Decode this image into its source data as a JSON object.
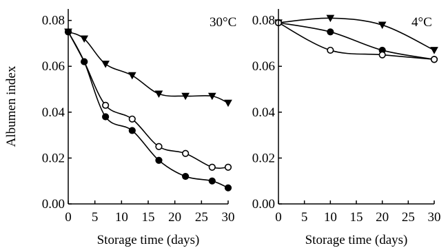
{
  "chart_data": [
    {
      "type": "line",
      "panel_label": "30°C",
      "xlabel": "Storage time (days)",
      "ylabel": "Albumen index",
      "xlim": [
        0,
        30
      ],
      "ylim": [
        0,
        0.085
      ],
      "x_ticks": [
        0,
        5,
        10,
        15,
        20,
        25,
        30
      ],
      "x_tick_labels": [
        "0",
        "5",
        "10",
        "15",
        "20",
        "25",
        "30"
      ],
      "y_ticks": [
        0,
        0.02,
        0.04,
        0.06,
        0.08
      ],
      "y_tick_labels": [
        "0.00",
        "0.02",
        "0.04",
        "0.06",
        "0.08"
      ],
      "grid": false,
      "series": [
        {
          "marker": "triangle-down",
          "x": [
            0,
            3,
            7,
            12,
            17,
            22,
            27,
            30
          ],
          "y": [
            0.075,
            0.072,
            0.061,
            0.056,
            0.048,
            0.047,
            0.047,
            0.044
          ]
        },
        {
          "marker": "circle-open",
          "x": [
            0,
            3,
            7,
            12,
            17,
            22,
            27,
            30
          ],
          "y": [
            0.075,
            0.062,
            0.043,
            0.037,
            0.025,
            0.022,
            0.016,
            0.016
          ]
        },
        {
          "marker": "circle-filled",
          "x": [
            0,
            3,
            7,
            12,
            17,
            22,
            27,
            30
          ],
          "y": [
            0.075,
            0.062,
            0.038,
            0.032,
            0.019,
            0.012,
            0.01,
            0.007
          ]
        }
      ]
    },
    {
      "type": "line",
      "panel_label": "4°C",
      "xlabel": "Storage time (days)",
      "ylabel": "",
      "xlim": [
        0,
        30
      ],
      "ylim": [
        0,
        0.085
      ],
      "x_ticks": [
        0,
        5,
        10,
        15,
        20,
        25,
        30
      ],
      "x_tick_labels": [
        "0",
        "5",
        "10",
        "15",
        "20",
        "25",
        "30"
      ],
      "y_ticks": [
        0,
        0.02,
        0.04,
        0.06,
        0.08
      ],
      "y_tick_labels": [
        "0.00",
        "0.02",
        "0.04",
        "0.06",
        "0.08"
      ],
      "grid": false,
      "series": [
        {
          "marker": "triangle-down",
          "x": [
            0,
            10,
            20,
            30
          ],
          "y": [
            0.079,
            0.081,
            0.078,
            0.067
          ]
        },
        {
          "marker": "circle-filled",
          "x": [
            0,
            10,
            20,
            30
          ],
          "y": [
            0.079,
            0.075,
            0.067,
            0.063
          ]
        },
        {
          "marker": "circle-open",
          "x": [
            0,
            10,
            20,
            30
          ],
          "y": [
            0.079,
            0.067,
            0.065,
            0.063
          ]
        }
      ]
    }
  ]
}
